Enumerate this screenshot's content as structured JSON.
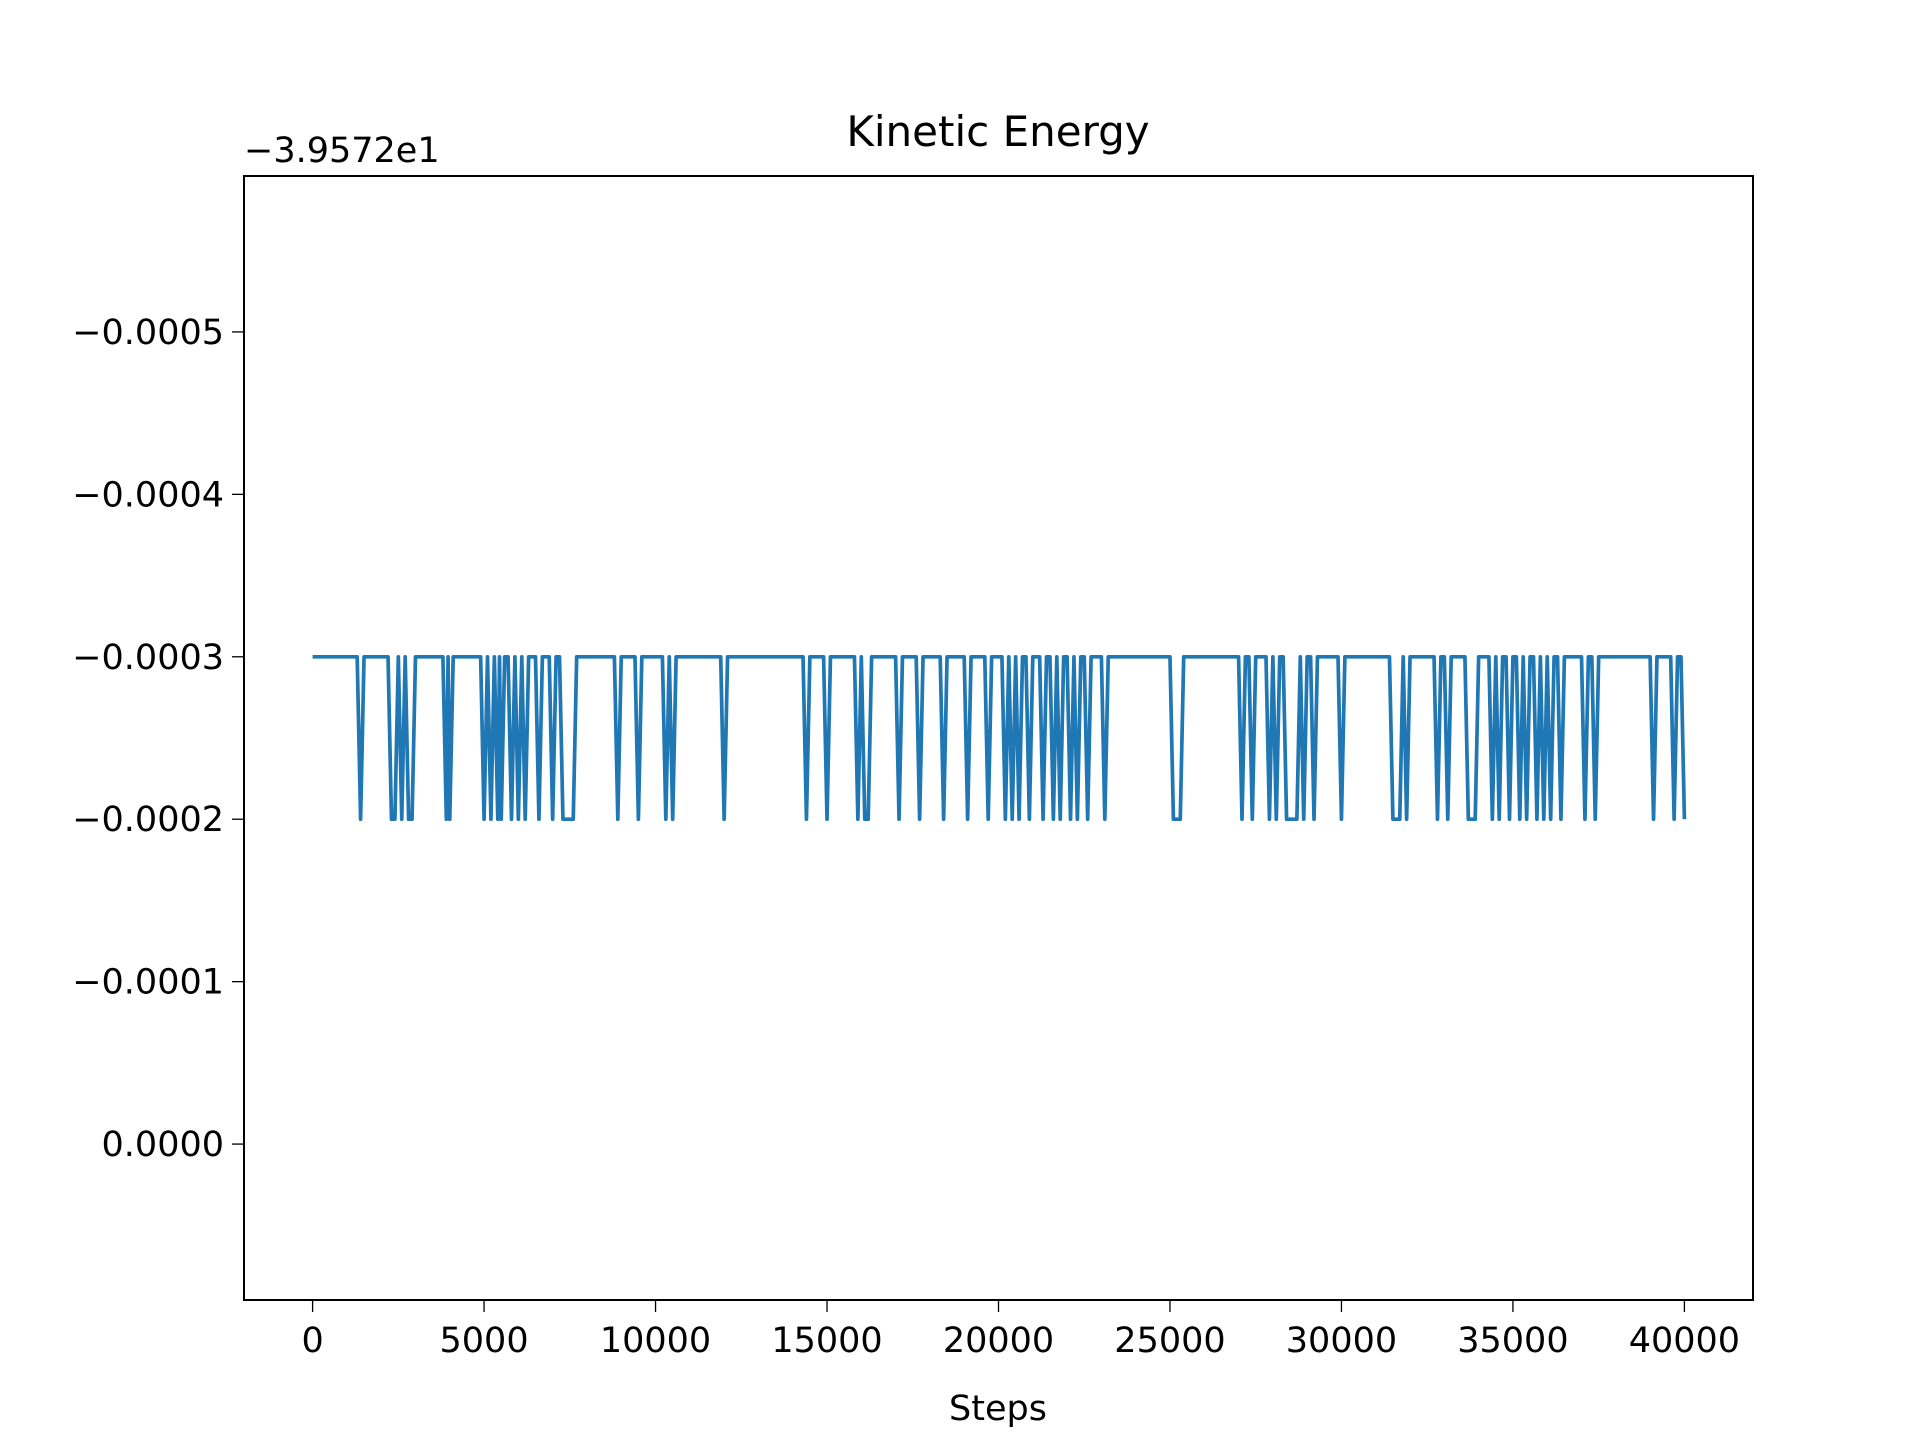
{
  "chart_data": {
    "type": "line",
    "title": "Kinetic Energy",
    "x_label": "Steps",
    "y_offset_label": "−3.9572e1",
    "color": "#1f77b4",
    "x": [
      0,
      1300,
      1400,
      1500,
      2200,
      2300,
      2400,
      2500,
      2600,
      2700,
      2800,
      2900,
      3000,
      3800,
      3900,
      3950,
      4000,
      4100,
      4900,
      5000,
      5100,
      5200,
      5300,
      5400,
      5450,
      5500,
      5600,
      5700,
      5800,
      5900,
      6000,
      6100,
      6200,
      6300,
      6500,
      6600,
      6700,
      6900,
      7000,
      7100,
      7200,
      7300,
      7600,
      7700,
      8800,
      8900,
      9000,
      9400,
      9500,
      9600,
      10200,
      10300,
      10400,
      10500,
      10600,
      11900,
      12000,
      12100,
      14300,
      14400,
      14500,
      14900,
      15000,
      15100,
      15800,
      15900,
      16000,
      16100,
      16200,
      16300,
      17000,
      17100,
      17200,
      17600,
      17700,
      17800,
      18300,
      18400,
      18500,
      19000,
      19100,
      19200,
      19600,
      19700,
      19800,
      20100,
      20200,
      20300,
      20400,
      20500,
      20600,
      20700,
      20800,
      20900,
      21000,
      21200,
      21300,
      21400,
      21500,
      21600,
      21700,
      21800,
      21900,
      22000,
      22100,
      22200,
      22300,
      22400,
      22500,
      22600,
      22700,
      23000,
      23100,
      23200,
      25000,
      25100,
      25300,
      25400,
      27000,
      27100,
      27200,
      27300,
      27400,
      27500,
      27800,
      27900,
      28000,
      28100,
      28200,
      28300,
      28400,
      28700,
      28800,
      28900,
      29000,
      29100,
      29200,
      29300,
      29900,
      30000,
      30100,
      31400,
      31500,
      31700,
      31800,
      31900,
      32000,
      32700,
      32800,
      32900,
      33000,
      33100,
      33200,
      33600,
      33700,
      33900,
      34000,
      34300,
      34400,
      34500,
      34600,
      34700,
      34800,
      34900,
      35000,
      35100,
      35200,
      35300,
      35400,
      35500,
      35600,
      35700,
      35800,
      35900,
      36000,
      36100,
      36200,
      36300,
      36400,
      36500,
      37000,
      37100,
      37200,
      37300,
      37400,
      37500,
      39000,
      39100,
      39200,
      39600,
      39700,
      39800,
      39900,
      40000
    ],
    "values": [
      -0.0003,
      -0.0003,
      -0.0002,
      -0.0003,
      -0.0003,
      -0.0002,
      -0.0002,
      -0.0003,
      -0.0002,
      -0.0003,
      -0.0002,
      -0.0002,
      -0.0003,
      -0.0003,
      -0.0002,
      -0.0003,
      -0.0002,
      -0.0003,
      -0.0003,
      -0.0002,
      -0.0003,
      -0.0002,
      -0.0003,
      -0.0002,
      -0.0003,
      -0.0002,
      -0.0003,
      -0.0003,
      -0.0002,
      -0.0003,
      -0.0002,
      -0.0003,
      -0.0002,
      -0.0003,
      -0.0003,
      -0.0002,
      -0.0003,
      -0.0003,
      -0.0002,
      -0.0003,
      -0.0003,
      -0.0002,
      -0.0002,
      -0.0003,
      -0.0003,
      -0.0002,
      -0.0003,
      -0.0003,
      -0.0002,
      -0.0003,
      -0.0003,
      -0.0002,
      -0.0003,
      -0.0002,
      -0.0003,
      -0.0003,
      -0.0002,
      -0.0003,
      -0.0003,
      -0.0002,
      -0.0003,
      -0.0003,
      -0.0002,
      -0.0003,
      -0.0003,
      -0.0002,
      -0.0003,
      -0.0002,
      -0.0002,
      -0.0003,
      -0.0003,
      -0.0002,
      -0.0003,
      -0.0003,
      -0.0002,
      -0.0003,
      -0.0003,
      -0.0002,
      -0.0003,
      -0.0003,
      -0.0002,
      -0.0003,
      -0.0003,
      -0.0002,
      -0.0003,
      -0.0003,
      -0.0002,
      -0.0003,
      -0.0002,
      -0.0003,
      -0.0002,
      -0.0003,
      -0.0003,
      -0.0002,
      -0.0003,
      -0.0003,
      -0.0002,
      -0.0003,
      -0.0003,
      -0.0002,
      -0.0003,
      -0.0002,
      -0.0003,
      -0.0003,
      -0.0002,
      -0.0003,
      -0.0002,
      -0.0003,
      -0.0003,
      -0.0002,
      -0.0003,
      -0.0003,
      -0.0002,
      -0.0003,
      -0.0003,
      -0.0002,
      -0.0002,
      -0.0003,
      -0.0003,
      -0.0002,
      -0.0003,
      -0.0003,
      -0.0002,
      -0.0003,
      -0.0003,
      -0.0002,
      -0.0003,
      -0.0002,
      -0.0003,
      -0.0003,
      -0.0002,
      -0.0002,
      -0.0003,
      -0.0002,
      -0.0003,
      -0.0003,
      -0.0002,
      -0.0003,
      -0.0003,
      -0.0002,
      -0.0003,
      -0.0003,
      -0.0002,
      -0.0002,
      -0.0003,
      -0.0002,
      -0.0003,
      -0.0003,
      -0.0002,
      -0.0003,
      -0.0003,
      -0.0002,
      -0.0003,
      -0.0003,
      -0.0002,
      -0.0002,
      -0.0003,
      -0.0003,
      -0.0002,
      -0.0003,
      -0.0002,
      -0.0003,
      -0.0003,
      -0.0002,
      -0.0003,
      -0.0003,
      -0.0002,
      -0.0003,
      -0.0002,
      -0.0003,
      -0.0003,
      -0.0002,
      -0.0003,
      -0.0002,
      -0.0003,
      -0.0002,
      -0.0003,
      -0.0003,
      -0.0002,
      -0.0003,
      -0.0003,
      -0.0002,
      -0.0003,
      -0.0003,
      -0.0002,
      -0.0003,
      -0.0003,
      -0.0002,
      -0.0003,
      -0.0003,
      -0.0002,
      -0.0003,
      -0.0003,
      -0.0002
    ],
    "xlim": [
      -2000,
      42000
    ],
    "xticks": [
      0,
      5000,
      10000,
      15000,
      20000,
      25000,
      30000,
      35000,
      40000
    ],
    "ylim": [
      9.6e-05,
      -0.000596
    ],
    "yticks": [
      {
        "value": -0.0005,
        "label": "−0.0005"
      },
      {
        "value": -0.0004,
        "label": "−0.0004"
      },
      {
        "value": -0.0003,
        "label": "−0.0003"
      },
      {
        "value": -0.0002,
        "label": "−0.0002"
      },
      {
        "value": -0.0001,
        "label": "−0.0001"
      },
      {
        "value": 0,
        "label": "0.0000"
      }
    ]
  }
}
